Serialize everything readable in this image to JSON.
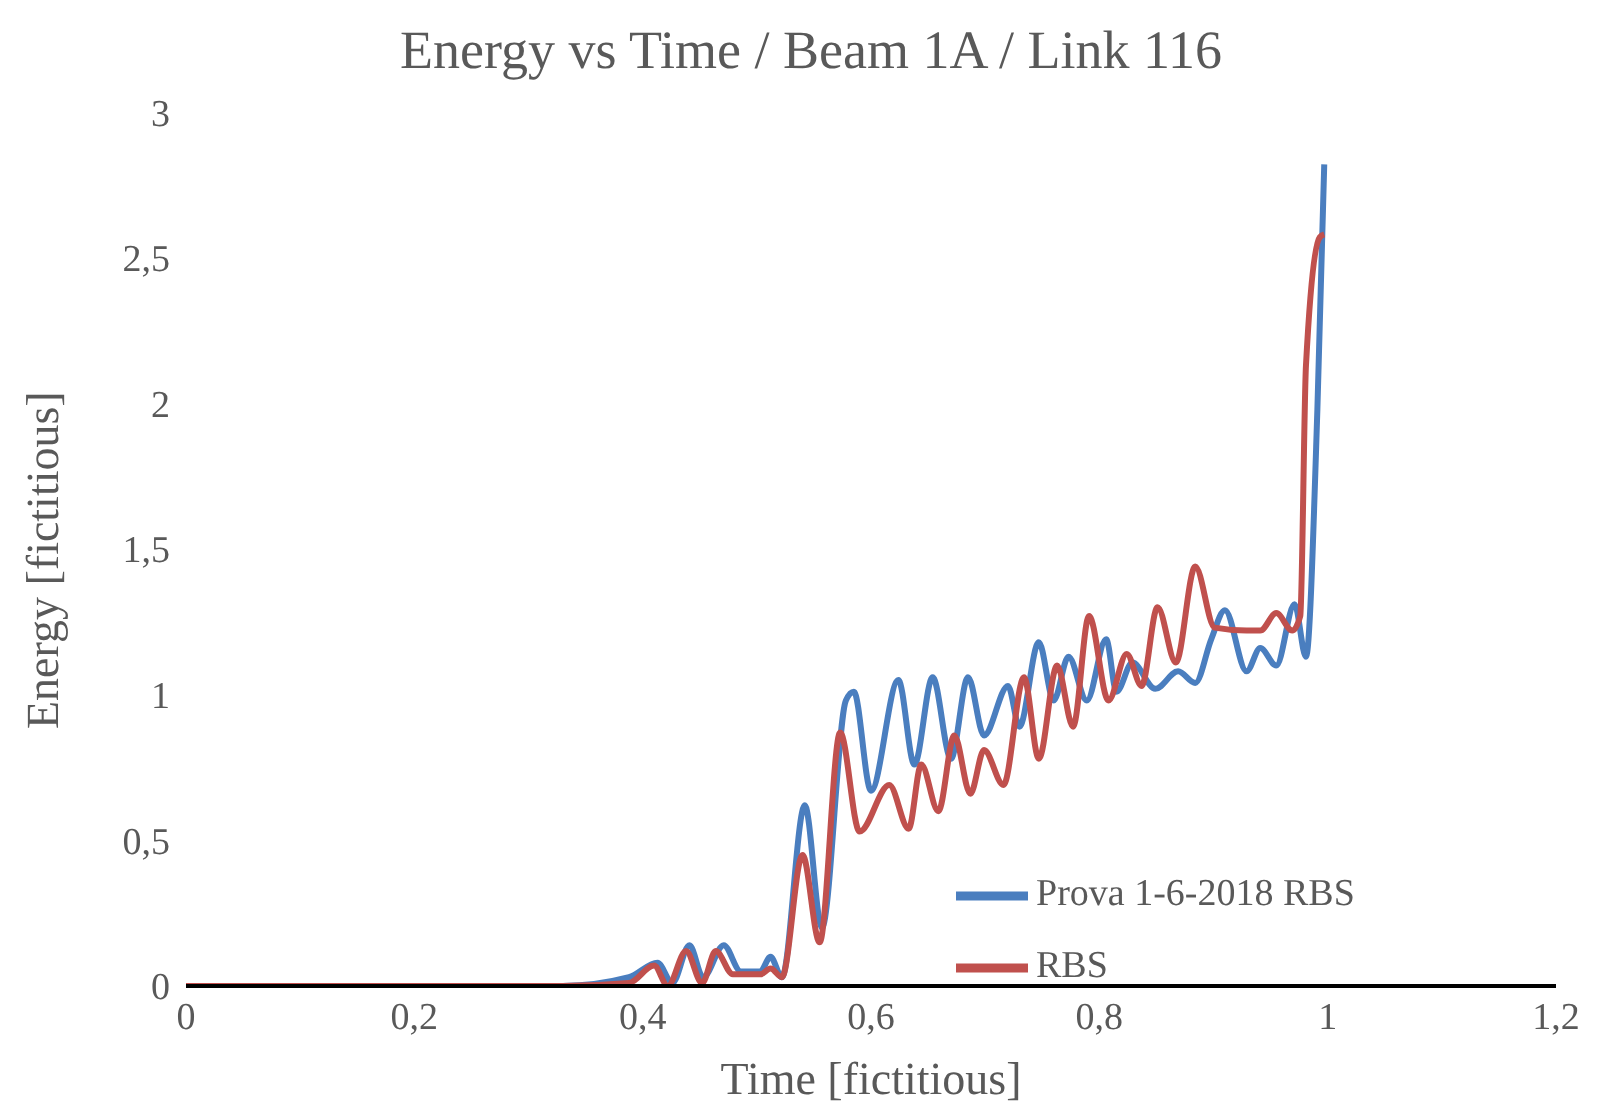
{
  "chart_data": {
    "type": "line",
    "title": "Energy vs Time / Beam 1A / Link 116",
    "xlabel": "Time [fictitious]",
    "ylabel": "Energy [fictitious]",
    "xlim": [
      0,
      1.2
    ],
    "xticks": [
      0,
      {
        "value": 0.2,
        "label": "0,2"
      },
      {
        "value": 0.4,
        "label": "0,4"
      },
      {
        "value": 0.6,
        "label": "0,6"
      },
      {
        "value": 0.8,
        "label": "0,8"
      },
      1,
      {
        "value": 1.2,
        "label": "1,2"
      }
    ],
    "ylim": [
      0,
      3
    ],
    "yticks": [
      0,
      {
        "value": 0.5,
        "label": "0,5"
      },
      1,
      {
        "value": 1.5,
        "label": "1,5"
      },
      2,
      {
        "value": 2.5,
        "label": "2,5"
      },
      3
    ],
    "grid": false,
    "legend": "bottom right",
    "marker": "none",
    "line_style": "solid",
    "series": [
      {
        "name": "Prova 1-6-2018 RBS",
        "color": "#4a7ebf",
        "x": [
          0,
          0.33,
          0.388,
          0.413,
          0.426,
          0.441,
          0.453,
          0.471,
          0.486,
          0.503,
          0.512,
          0.522,
          0.542,
          0.557,
          0.578,
          0.585,
          0.6,
          0.624,
          0.638,
          0.654,
          0.67,
          0.685,
          0.699,
          0.72,
          0.73,
          0.747,
          0.76,
          0.773,
          0.789,
          0.806,
          0.815,
          0.829,
          0.849,
          0.869,
          0.884,
          0.898,
          0.91,
          0.929,
          0.941,
          0.955,
          0.971,
          0.981,
          0.991,
          0.997
        ],
        "values": [
          0,
          0,
          0.03,
          0.08,
          0.01,
          0.14,
          0.03,
          0.14,
          0.05,
          0.05,
          0.1,
          0.03,
          0.62,
          0.2,
          0.98,
          1.01,
          0.67,
          1.05,
          0.76,
          1.06,
          0.78,
          1.06,
          0.86,
          1.03,
          0.89,
          1.18,
          0.98,
          1.13,
          0.98,
          1.19,
          1.01,
          1.11,
          1.02,
          1.08,
          1.04,
          1.19,
          1.29,
          1.08,
          1.16,
          1.1,
          1.31,
          1.13,
          1.98,
          2.82
        ]
      },
      {
        "name": "RBS",
        "color": "#c0504d",
        "x": [
          0,
          0.33,
          0.388,
          0.41,
          0.422,
          0.438,
          0.452,
          0.464,
          0.479,
          0.503,
          0.512,
          0.522,
          0.54,
          0.555,
          0.573,
          0.59,
          0.616,
          0.633,
          0.644,
          0.659,
          0.673,
          0.687,
          0.699,
          0.716,
          0.734,
          0.747,
          0.763,
          0.777,
          0.791,
          0.808,
          0.824,
          0.837,
          0.851,
          0.867,
          0.884,
          0.901,
          0.929,
          0.941,
          0.955,
          0.969,
          0.976,
          0.981,
          0.993,
          0.997
        ],
        "values": [
          0,
          0,
          0.01,
          0.07,
          0,
          0.12,
          0.01,
          0.12,
          0.04,
          0.04,
          0.06,
          0.03,
          0.45,
          0.15,
          0.87,
          0.53,
          0.69,
          0.54,
          0.76,
          0.6,
          0.86,
          0.66,
          0.81,
          0.69,
          1.06,
          0.78,
          1.1,
          0.89,
          1.27,
          0.98,
          1.14,
          1.03,
          1.3,
          1.11,
          1.44,
          1.23,
          1.22,
          1.22,
          1.28,
          1.22,
          1.27,
          2.13,
          2.57,
          2.58
        ]
      }
    ]
  }
}
